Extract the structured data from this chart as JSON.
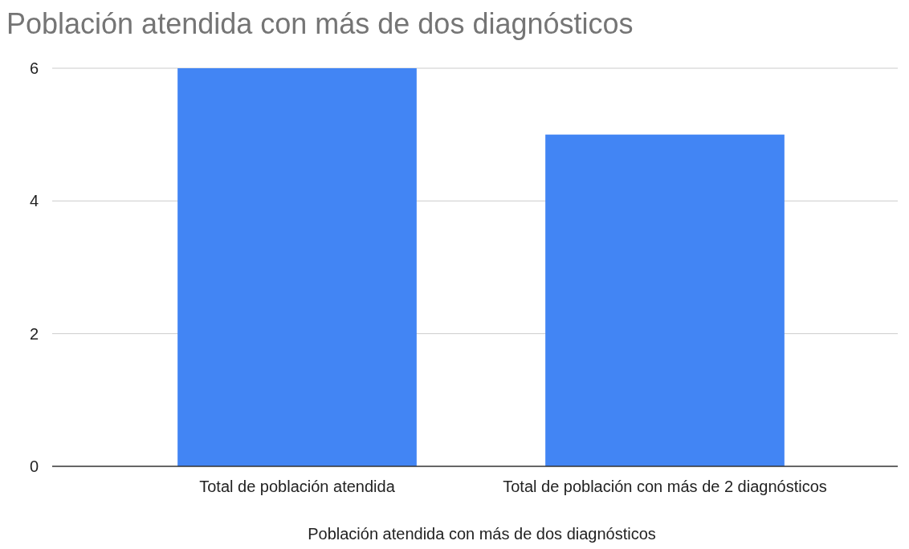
{
  "chart_data": {
    "type": "bar",
    "title": "Población atendida con más de dos diagnósticos",
    "xlabel": "Población atendida con más de dos diagnósticos",
    "categories": [
      "Total de población atendida",
      "Total de población con más de 2 diagnósticos"
    ],
    "values": [
      6,
      5
    ],
    "color": "#4285f4",
    "ylim": [
      0,
      6
    ],
    "yticks": [
      0,
      2,
      4,
      6
    ],
    "grid": "y"
  }
}
